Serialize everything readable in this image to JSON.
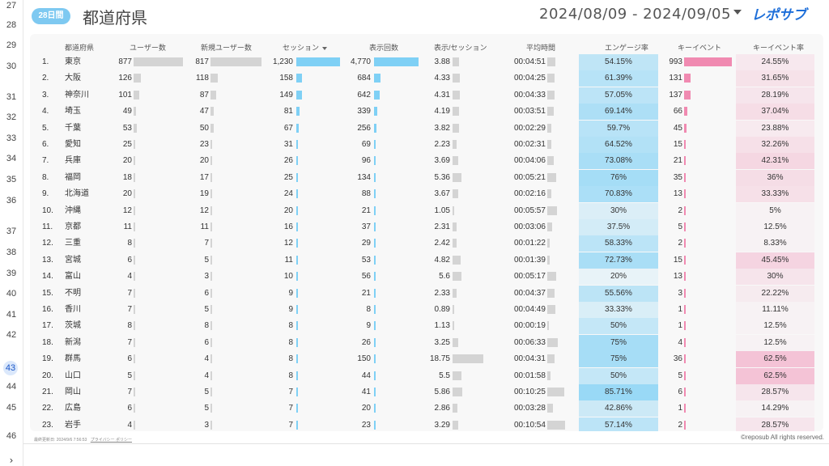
{
  "gutter": {
    "row_numbers": [
      "27",
      "28",
      "29",
      "30",
      "31",
      "32",
      "33",
      "34",
      "35",
      "36",
      "37",
      "38",
      "39",
      "40",
      "41",
      "42",
      "43",
      "44",
      "45",
      "46"
    ],
    "active": "43",
    "chevron": "›"
  },
  "header": {
    "badge": "28日間",
    "title": "都道府県",
    "date_range": "2024/08/09 - 2024/09/05",
    "logo_text": "レポサブ"
  },
  "table": {
    "columns": [
      "都道府県",
      "ユーザー数",
      "新規ユーザー数",
      "セッション",
      "表示回数",
      "表示/セッション",
      "平均時間",
      "エンゲージ率",
      "キーイベント",
      "キーイベント率"
    ],
    "sorted_column": "セッション",
    "rows": [
      {
        "no": "1.",
        "pref": "東京",
        "users": "877",
        "new_users": "817",
        "sessions": "1,230",
        "views": "4,770",
        "vps": "3.88",
        "avg": "00:04:51",
        "eng": "54.15%",
        "kev": "993",
        "kevr": "24.55%"
      },
      {
        "no": "2.",
        "pref": "大阪",
        "users": "126",
        "new_users": "118",
        "sessions": "158",
        "views": "684",
        "vps": "4.33",
        "avg": "00:04:25",
        "eng": "61.39%",
        "kev": "131",
        "kevr": "31.65%"
      },
      {
        "no": "3.",
        "pref": "神奈川",
        "users": "101",
        "new_users": "87",
        "sessions": "149",
        "views": "642",
        "vps": "4.31",
        "avg": "00:04:33",
        "eng": "57.05%",
        "kev": "137",
        "kevr": "28.19%"
      },
      {
        "no": "4.",
        "pref": "埼玉",
        "users": "49",
        "new_users": "47",
        "sessions": "81",
        "views": "339",
        "vps": "4.19",
        "avg": "00:03:51",
        "eng": "69.14%",
        "kev": "66",
        "kevr": "37.04%"
      },
      {
        "no": "5.",
        "pref": "千葉",
        "users": "53",
        "new_users": "50",
        "sessions": "67",
        "views": "256",
        "vps": "3.82",
        "avg": "00:02:29",
        "eng": "59.7%",
        "kev": "45",
        "kevr": "23.88%"
      },
      {
        "no": "6.",
        "pref": "愛知",
        "users": "25",
        "new_users": "23",
        "sessions": "31",
        "views": "69",
        "vps": "2.23",
        "avg": "00:02:31",
        "eng": "64.52%",
        "kev": "15",
        "kevr": "32.26%"
      },
      {
        "no": "7.",
        "pref": "兵庫",
        "users": "20",
        "new_users": "20",
        "sessions": "26",
        "views": "96",
        "vps": "3.69",
        "avg": "00:04:06",
        "eng": "73.08%",
        "kev": "21",
        "kevr": "42.31%"
      },
      {
        "no": "8.",
        "pref": "福岡",
        "users": "18",
        "new_users": "17",
        "sessions": "25",
        "views": "134",
        "vps": "5.36",
        "avg": "00:05:21",
        "eng": "76%",
        "kev": "35",
        "kevr": "36%"
      },
      {
        "no": "9.",
        "pref": "北海道",
        "users": "20",
        "new_users": "19",
        "sessions": "24",
        "views": "88",
        "vps": "3.67",
        "avg": "00:02:16",
        "eng": "70.83%",
        "kev": "13",
        "kevr": "33.33%"
      },
      {
        "no": "10.",
        "pref": "沖縄",
        "users": "12",
        "new_users": "12",
        "sessions": "20",
        "views": "21",
        "vps": "1.05",
        "avg": "00:05:57",
        "eng": "30%",
        "kev": "2",
        "kevr": "5%"
      },
      {
        "no": "11.",
        "pref": "京都",
        "users": "11",
        "new_users": "11",
        "sessions": "16",
        "views": "37",
        "vps": "2.31",
        "avg": "00:03:06",
        "eng": "37.5%",
        "kev": "5",
        "kevr": "12.5%"
      },
      {
        "no": "12.",
        "pref": "三重",
        "users": "8",
        "new_users": "7",
        "sessions": "12",
        "views": "29",
        "vps": "2.42",
        "avg": "00:01:22",
        "eng": "58.33%",
        "kev": "2",
        "kevr": "8.33%"
      },
      {
        "no": "13.",
        "pref": "宮城",
        "users": "6",
        "new_users": "5",
        "sessions": "11",
        "views": "53",
        "vps": "4.82",
        "avg": "00:01:39",
        "eng": "72.73%",
        "kev": "15",
        "kevr": "45.45%"
      },
      {
        "no": "14.",
        "pref": "富山",
        "users": "4",
        "new_users": "3",
        "sessions": "10",
        "views": "56",
        "vps": "5.6",
        "avg": "00:05:17",
        "eng": "20%",
        "kev": "13",
        "kevr": "30%"
      },
      {
        "no": "15.",
        "pref": "不明",
        "users": "7",
        "new_users": "6",
        "sessions": "9",
        "views": "21",
        "vps": "2.33",
        "avg": "00:04:37",
        "eng": "55.56%",
        "kev": "3",
        "kevr": "22.22%"
      },
      {
        "no": "16.",
        "pref": "香川",
        "users": "7",
        "new_users": "5",
        "sessions": "9",
        "views": "8",
        "vps": "0.89",
        "avg": "00:04:49",
        "eng": "33.33%",
        "kev": "1",
        "kevr": "11.11%"
      },
      {
        "no": "17.",
        "pref": "茨城",
        "users": "8",
        "new_users": "8",
        "sessions": "8",
        "views": "9",
        "vps": "1.13",
        "avg": "00:00:19",
        "eng": "50%",
        "kev": "1",
        "kevr": "12.5%"
      },
      {
        "no": "18.",
        "pref": "新潟",
        "users": "7",
        "new_users": "6",
        "sessions": "8",
        "views": "26",
        "vps": "3.25",
        "avg": "00:06:33",
        "eng": "75%",
        "kev": "4",
        "kevr": "12.5%"
      },
      {
        "no": "19.",
        "pref": "群馬",
        "users": "6",
        "new_users": "4",
        "sessions": "8",
        "views": "150",
        "vps": "18.75",
        "avg": "00:04:31",
        "eng": "75%",
        "kev": "36",
        "kevr": "62.5%"
      },
      {
        "no": "20.",
        "pref": "山口",
        "users": "5",
        "new_users": "4",
        "sessions": "8",
        "views": "44",
        "vps": "5.5",
        "avg": "00:01:58",
        "eng": "50%",
        "kev": "5",
        "kevr": "62.5%"
      },
      {
        "no": "21.",
        "pref": "岡山",
        "users": "7",
        "new_users": "5",
        "sessions": "7",
        "views": "41",
        "vps": "5.86",
        "avg": "00:10:25",
        "eng": "85.71%",
        "kev": "6",
        "kevr": "28.57%"
      },
      {
        "no": "22.",
        "pref": "広島",
        "users": "6",
        "new_users": "5",
        "sessions": "7",
        "views": "20",
        "vps": "2.86",
        "avg": "00:03:28",
        "eng": "42.86%",
        "kev": "1",
        "kevr": "14.29%"
      },
      {
        "no": "23.",
        "pref": "岩手",
        "users": "4",
        "new_users": "3",
        "sessions": "7",
        "views": "23",
        "vps": "3.29",
        "avg": "00:10:54",
        "eng": "57.14%",
        "kev": "2",
        "kevr": "28.57%"
      }
    ]
  },
  "footer": {
    "updated": "最終更新日: 2024/9/6 7:56:53",
    "privacy": "プライバシー ポリシー",
    "copyright": "©reposub All rights reserved."
  },
  "colors": {
    "blue_bar": "#7fd0f5",
    "pink_bar": "#f08ab1",
    "gray_bar": "#d4d4d4",
    "badge": "#7ec9f1",
    "logo": "#1e6fd9"
  }
}
